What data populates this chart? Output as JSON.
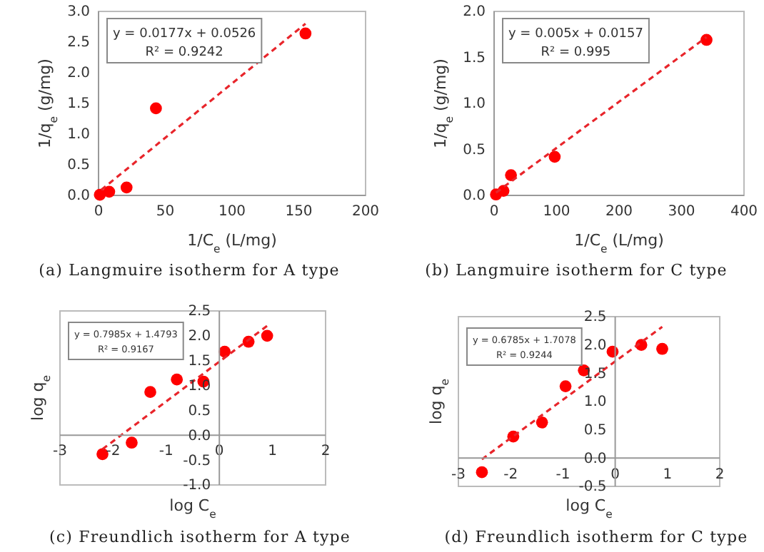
{
  "chart_data": [
    {
      "type": "scatter",
      "title": "(a) Langmuire isotherm for A type",
      "xlabel": "1/C$_{e}$ (L/mg)",
      "ylabel": "1/q$_{e}$ (g/mg)",
      "xlim": [
        0,
        200
      ],
      "xticks": [
        0,
        50,
        100,
        150,
        200
      ],
      "ylim": [
        0,
        3
      ],
      "yticks": [
        {
          "value": 0,
          "label": "0.0"
        },
        {
          "value": 0.5,
          "label": "0.5"
        },
        {
          "value": 1,
          "label": "1.0"
        },
        {
          "value": 1.5,
          "label": "1.5"
        },
        {
          "value": 2,
          "label": "2.0"
        },
        {
          "value": 2.5,
          "label": "2.5"
        },
        {
          "value": 3,
          "label": "3.0"
        }
      ],
      "annotations": [
        "y = 0.0177x + 0.0526",
        "R² = 0.9242"
      ],
      "series": [
        {
          "type": "scatter",
          "marker": "circle",
          "color": "#ff0000",
          "x": [
            1,
            8,
            21,
            43,
            155
          ],
          "values": [
            0.01,
            0.06,
            0.13,
            1.42,
            2.64
          ]
        },
        {
          "type": "line",
          "marker": "none",
          "color": "#e8252b",
          "line_style": "dashed",
          "x": [
            2,
            155
          ],
          "values": [
            0.09,
            2.8
          ]
        }
      ]
    },
    {
      "type": "scatter",
      "title": "(b) Langmuire isotherm for C type",
      "xlabel": "1/C$_{e}$ (L/mg)",
      "ylabel": "1/q$_{e}$ (g/mg)",
      "xlim": [
        0,
        400
      ],
      "xticks": [
        0,
        100,
        200,
        300,
        400
      ],
      "ylim": [
        0,
        2
      ],
      "yticks": [
        {
          "value": 0,
          "label": "0.0"
        },
        {
          "value": 0.5,
          "label": "0.5"
        },
        {
          "value": 1,
          "label": "1.0"
        },
        {
          "value": 1.5,
          "label": "1.5"
        },
        {
          "value": 2,
          "label": "2.0"
        }
      ],
      "annotations": [
        "y = 0.005x + 0.0157",
        "R² = 0.995"
      ],
      "series": [
        {
          "type": "scatter",
          "marker": "circle",
          "color": "#ff0000",
          "x": [
            3,
            15,
            27,
            97,
            340
          ],
          "values": [
            0.01,
            0.05,
            0.22,
            0.42,
            1.69
          ]
        },
        {
          "type": "line",
          "marker": "none",
          "color": "#e8252b",
          "line_style": "dashed",
          "x": [
            3,
            340
          ],
          "values": [
            0.03,
            1.72
          ]
        }
      ]
    },
    {
      "type": "scatter",
      "title": "(c) Freundlich isotherm for A type",
      "xlabel": "log C$_{e}$",
      "ylabel": "log q$_{e}$",
      "xlim": [
        -3,
        2
      ],
      "xticks": [
        -3,
        -2,
        -1,
        0,
        1,
        2
      ],
      "ylim": [
        -1,
        2.5
      ],
      "yticks": [
        {
          "value": -1,
          "label": "-1.0"
        },
        {
          "value": -0.5,
          "label": "-0.5"
        },
        {
          "value": 0,
          "label": "0.0"
        },
        {
          "value": 0.5,
          "label": "0.5"
        },
        {
          "value": 1,
          "label": "1.0"
        },
        {
          "value": 1.5,
          "label": "1.5"
        },
        {
          "value": 2,
          "label": "2.0"
        },
        {
          "value": 2.5,
          "label": "2.5"
        }
      ],
      "annotations": [
        "y = 0.7985x + 1.4793",
        "R² = 0.9167"
      ],
      "series": [
        {
          "type": "scatter",
          "marker": "circle",
          "color": "#ff0000",
          "x": [
            -2.2,
            -1.65,
            -1.3,
            -0.8,
            -0.3,
            0.1,
            0.55,
            0.9
          ],
          "values": [
            -0.38,
            -0.15,
            0.87,
            1.12,
            1.08,
            1.68,
            1.88,
            2.0
          ]
        },
        {
          "type": "line",
          "marker": "none",
          "color": "#e8252b",
          "line_style": "dashed",
          "x": [
            -2.2,
            0.9
          ],
          "values": [
            -0.28,
            2.2
          ]
        }
      ]
    },
    {
      "type": "scatter",
      "title": "(d) Freundlich isotherm for C type",
      "xlabel": "log C$_{e}$",
      "ylabel": "log q$_{e}$",
      "xlim": [
        -3,
        2
      ],
      "xticks": [
        -3,
        -2,
        -1,
        0,
        1,
        2
      ],
      "ylim": [
        -0.5,
        2.5
      ],
      "yticks": [
        {
          "value": -0.5,
          "label": "-0.5"
        },
        {
          "value": 0,
          "label": "0.0"
        },
        {
          "value": 0.5,
          "label": "0.5"
        },
        {
          "value": 1,
          "label": "1.0"
        },
        {
          "value": 1.5,
          "label": "1.5"
        },
        {
          "value": 2,
          "label": "2.0"
        },
        {
          "value": 2.5,
          "label": "2.5"
        }
      ],
      "annotations": [
        "y = 0.6785x + 1.7078",
        "R² = 0.9244"
      ],
      "series": [
        {
          "type": "scatter",
          "marker": "circle",
          "color": "#ff0000",
          "x": [
            -2.55,
            -1.95,
            -1.4,
            -0.95,
            -0.6,
            -0.05,
            0.5,
            0.9
          ],
          "values": [
            -0.25,
            0.38,
            0.63,
            1.27,
            1.55,
            1.88,
            2.0,
            1.93
          ]
        },
        {
          "type": "line",
          "marker": "none",
          "color": "#e8252b",
          "line_style": "dashed",
          "x": [
            -2.55,
            0.9
          ],
          "values": [
            -0.02,
            2.32
          ]
        }
      ]
    }
  ]
}
